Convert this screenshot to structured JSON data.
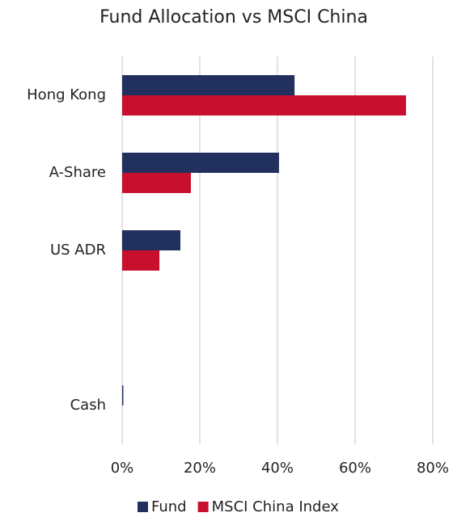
{
  "chart_data": {
    "type": "hbar",
    "title": "Fund Allocation vs MSCI China",
    "categories": [
      "Hong Kong",
      "A-Share",
      "US ADR",
      null,
      "Cash"
    ],
    "series": [
      {
        "name": "Fund",
        "color": "#22305e",
        "values": [
          44.4,
          40.4,
          15.0,
          null,
          0.3
        ]
      },
      {
        "name": "MSCI China Index",
        "color": "#c8102e",
        "values": [
          73.1,
          17.7,
          9.6,
          null,
          0
        ]
      }
    ],
    "xlim": [
      0,
      80
    ],
    "xticks": [
      {
        "value": 0,
        "label": "0%"
      },
      {
        "value": 20,
        "label": "20%"
      },
      {
        "value": 40,
        "label": "40%"
      },
      {
        "value": 60,
        "label": "60%"
      },
      {
        "value": 80,
        "label": "80%"
      }
    ],
    "grid": true,
    "legend": "bottom"
  }
}
